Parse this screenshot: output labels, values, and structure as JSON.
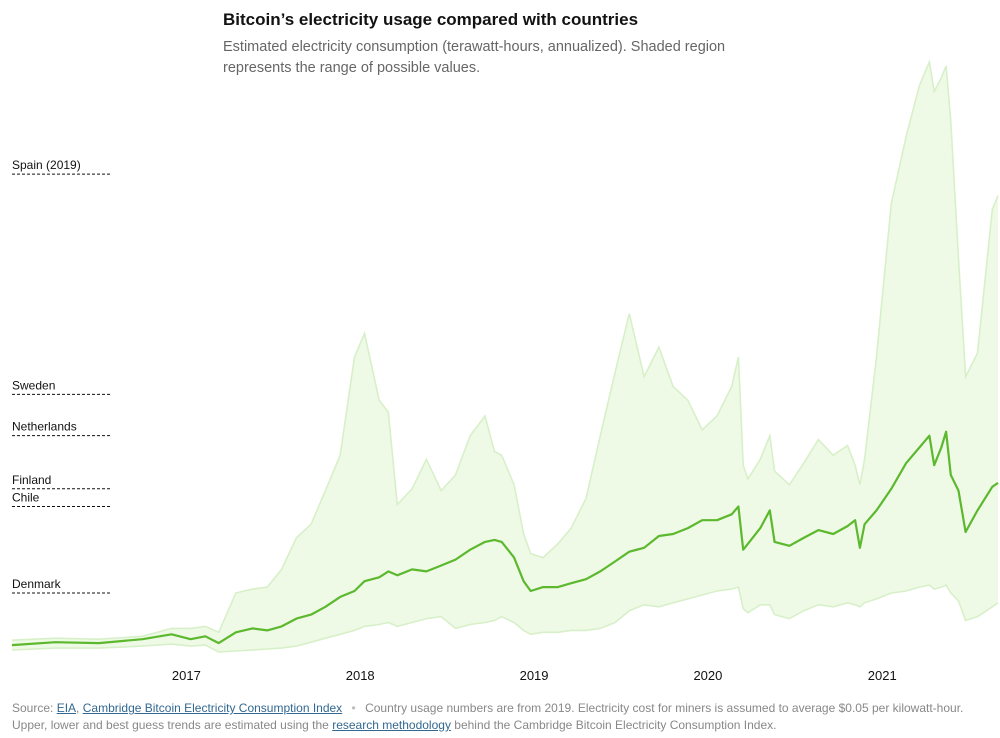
{
  "title": "Bitcoin’s electricity usage compared with countries",
  "subtitle": "Estimated electricity consumption (terawatt-hours, annualized). Shaded region represents the range of possible values.",
  "colors": {
    "line": "#5cb82d",
    "band_fill": "#eefae6",
    "band_edge": "#d8f0c9",
    "reference_line": "#121212",
    "link": "#326891"
  },
  "footer": {
    "source_prefix": "Source:",
    "link_eia": "EIA",
    "comma": ",",
    "link_cambridge": "Cambridge Bitcoin Electricity Consumption Index",
    "separator": "•",
    "note_part1": "Country usage numbers are from 2019. Electricity cost for miners is assumed to average $0.05 per kilowatt-hour. Upper, lower and best guess trends are estimated using the",
    "link_research": "research methodology",
    "note_part2": "behind the Cambridge Bitcoin Electricity Consumption Index."
  },
  "chart_data": {
    "type": "area",
    "ylim": [
      0,
      300
    ],
    "xlim": [
      "2016-01-01",
      "2021-09-01"
    ],
    "x_ticks": [
      {
        "label": "2017",
        "date": "2017-01-01"
      },
      {
        "label": "2018",
        "date": "2018-01-01"
      },
      {
        "label": "2019",
        "date": "2019-01-01"
      },
      {
        "label": "2020",
        "date": "2020-01-01"
      },
      {
        "label": "2021",
        "date": "2021-01-01"
      }
    ],
    "references": [
      {
        "label": "Spain (2019)",
        "value": 243
      },
      {
        "label": "Sweden",
        "value": 131
      },
      {
        "label": "Netherlands",
        "value": 110
      },
      {
        "label": "Finland",
        "value": 83
      },
      {
        "label": "Chile",
        "value": 74
      },
      {
        "label": "Denmark",
        "value": 30
      }
    ],
    "series": [
      {
        "role": "best_guess",
        "points": [
          [
            "2016-01-01",
            3.5
          ],
          [
            "2016-04-01",
            5
          ],
          [
            "2016-07-01",
            4.5
          ],
          [
            "2016-10-01",
            6.5
          ],
          [
            "2016-12-01",
            9
          ],
          [
            "2017-01-10",
            6.5
          ],
          [
            "2017-02-10",
            8
          ],
          [
            "2017-03-10",
            4.5
          ],
          [
            "2017-04-15",
            10
          ],
          [
            "2017-05-20",
            12
          ],
          [
            "2017-06-20",
            11
          ],
          [
            "2017-07-20",
            13
          ],
          [
            "2017-08-20",
            17
          ],
          [
            "2017-09-20",
            19
          ],
          [
            "2017-10-20",
            23
          ],
          [
            "2017-11-20",
            28
          ],
          [
            "2017-12-20",
            31
          ],
          [
            "2018-01-10",
            36
          ],
          [
            "2018-02-10",
            38
          ],
          [
            "2018-03-01",
            41
          ],
          [
            "2018-03-20",
            39
          ],
          [
            "2018-04-20",
            42
          ],
          [
            "2018-05-20",
            41
          ],
          [
            "2018-06-20",
            44
          ],
          [
            "2018-07-20",
            47
          ],
          [
            "2018-08-20",
            52
          ],
          [
            "2018-09-20",
            56
          ],
          [
            "2018-10-10",
            57
          ],
          [
            "2018-10-25",
            56
          ],
          [
            "2018-11-20",
            48
          ],
          [
            "2018-12-10",
            36
          ],
          [
            "2018-12-25",
            31
          ],
          [
            "2019-01-20",
            33
          ],
          [
            "2019-02-20",
            33
          ],
          [
            "2019-03-20",
            35
          ],
          [
            "2019-04-20",
            37
          ],
          [
            "2019-05-20",
            41
          ],
          [
            "2019-06-20",
            46
          ],
          [
            "2019-07-20",
            51
          ],
          [
            "2019-08-20",
            53
          ],
          [
            "2019-09-20",
            59
          ],
          [
            "2019-10-20",
            60
          ],
          [
            "2019-11-20",
            63
          ],
          [
            "2019-12-20",
            67
          ],
          [
            "2020-01-20",
            67
          ],
          [
            "2020-02-20",
            70
          ],
          [
            "2020-03-05",
            74
          ],
          [
            "2020-03-15",
            52
          ],
          [
            "2020-03-25",
            55
          ],
          [
            "2020-04-20",
            63
          ],
          [
            "2020-05-10",
            72
          ],
          [
            "2020-05-20",
            56
          ],
          [
            "2020-06-20",
            54
          ],
          [
            "2020-07-20",
            58
          ],
          [
            "2020-08-20",
            62
          ],
          [
            "2020-09-20",
            60
          ],
          [
            "2020-10-20",
            64
          ],
          [
            "2020-11-05",
            67
          ],
          [
            "2020-11-15",
            53
          ],
          [
            "2020-11-25",
            65
          ],
          [
            "2020-12-20",
            72
          ],
          [
            "2021-01-20",
            83
          ],
          [
            "2021-02-20",
            96
          ],
          [
            "2021-03-20",
            104
          ],
          [
            "2021-04-10",
            110
          ],
          [
            "2021-04-20",
            95
          ],
          [
            "2021-05-05",
            104
          ],
          [
            "2021-05-15",
            112
          ],
          [
            "2021-05-25",
            90
          ],
          [
            "2021-06-10",
            82
          ],
          [
            "2021-06-25",
            61
          ],
          [
            "2021-07-20",
            72
          ],
          [
            "2021-08-20",
            84
          ],
          [
            "2021-09-01",
            86
          ]
        ]
      },
      {
        "role": "upper",
        "points": [
          [
            "2016-01-01",
            6
          ],
          [
            "2016-04-01",
            7
          ],
          [
            "2016-07-01",
            6.5
          ],
          [
            "2016-10-01",
            8
          ],
          [
            "2016-12-01",
            12
          ],
          [
            "2017-01-10",
            12
          ],
          [
            "2017-02-10",
            13
          ],
          [
            "2017-03-10",
            10
          ],
          [
            "2017-04-15",
            30
          ],
          [
            "2017-05-20",
            32
          ],
          [
            "2017-06-20",
            33
          ],
          [
            "2017-07-20",
            42
          ],
          [
            "2017-08-20",
            58
          ],
          [
            "2017-09-20",
            65
          ],
          [
            "2017-10-20",
            82
          ],
          [
            "2017-11-20",
            100
          ],
          [
            "2017-12-20",
            150
          ],
          [
            "2018-01-10",
            162
          ],
          [
            "2018-02-10",
            128
          ],
          [
            "2018-03-01",
            122
          ],
          [
            "2018-03-20",
            75
          ],
          [
            "2018-04-20",
            83
          ],
          [
            "2018-05-20",
            98
          ],
          [
            "2018-06-20",
            82
          ],
          [
            "2018-07-20",
            90
          ],
          [
            "2018-08-20",
            110
          ],
          [
            "2018-09-20",
            120
          ],
          [
            "2018-10-10",
            102
          ],
          [
            "2018-10-25",
            100
          ],
          [
            "2018-11-20",
            85
          ],
          [
            "2018-12-10",
            60
          ],
          [
            "2018-12-25",
            50
          ],
          [
            "2019-01-20",
            48
          ],
          [
            "2019-02-20",
            55
          ],
          [
            "2019-03-20",
            63
          ],
          [
            "2019-04-20",
            78
          ],
          [
            "2019-05-20",
            110
          ],
          [
            "2019-06-20",
            142
          ],
          [
            "2019-07-20",
            172
          ],
          [
            "2019-08-20",
            140
          ],
          [
            "2019-09-20",
            155
          ],
          [
            "2019-10-20",
            135
          ],
          [
            "2019-11-20",
            128
          ],
          [
            "2019-12-20",
            113
          ],
          [
            "2020-01-20",
            120
          ],
          [
            "2020-02-20",
            135
          ],
          [
            "2020-03-05",
            150
          ],
          [
            "2020-03-15",
            95
          ],
          [
            "2020-03-25",
            88
          ],
          [
            "2020-04-20",
            98
          ],
          [
            "2020-05-10",
            110
          ],
          [
            "2020-05-20",
            92
          ],
          [
            "2020-06-20",
            85
          ],
          [
            "2020-07-20",
            96
          ],
          [
            "2020-08-20",
            108
          ],
          [
            "2020-09-20",
            100
          ],
          [
            "2020-10-20",
            105
          ],
          [
            "2020-11-05",
            95
          ],
          [
            "2020-11-15",
            85
          ],
          [
            "2020-11-25",
            98
          ],
          [
            "2020-12-20",
            150
          ],
          [
            "2021-01-20",
            228
          ],
          [
            "2021-02-20",
            262
          ],
          [
            "2021-03-20",
            288
          ],
          [
            "2021-04-10",
            300
          ],
          [
            "2021-04-20",
            285
          ],
          [
            "2021-05-05",
            292
          ],
          [
            "2021-05-15",
            298
          ],
          [
            "2021-05-25",
            270
          ],
          [
            "2021-06-10",
            200
          ],
          [
            "2021-06-25",
            140
          ],
          [
            "2021-07-20",
            152
          ],
          [
            "2021-08-20",
            225
          ],
          [
            "2021-09-01",
            232
          ]
        ]
      },
      {
        "role": "lower",
        "points": [
          [
            "2016-01-01",
            1
          ],
          [
            "2016-04-01",
            2
          ],
          [
            "2016-07-01",
            2
          ],
          [
            "2016-10-01",
            3
          ],
          [
            "2016-12-01",
            4
          ],
          [
            "2017-01-10",
            3
          ],
          [
            "2017-02-10",
            3.5
          ],
          [
            "2017-03-10",
            0
          ],
          [
            "2017-04-15",
            0.5
          ],
          [
            "2017-05-20",
            1
          ],
          [
            "2017-06-20",
            1.5
          ],
          [
            "2017-07-20",
            2
          ],
          [
            "2017-08-20",
            3
          ],
          [
            "2017-09-20",
            5
          ],
          [
            "2017-10-20",
            7
          ],
          [
            "2017-11-20",
            9
          ],
          [
            "2017-12-20",
            11
          ],
          [
            "2018-01-10",
            13
          ],
          [
            "2018-02-10",
            14
          ],
          [
            "2018-03-01",
            15
          ],
          [
            "2018-03-20",
            13
          ],
          [
            "2018-04-20",
            15
          ],
          [
            "2018-05-20",
            17
          ],
          [
            "2018-06-20",
            18
          ],
          [
            "2018-07-20",
            12
          ],
          [
            "2018-08-20",
            14
          ],
          [
            "2018-09-20",
            15
          ],
          [
            "2018-10-10",
            16
          ],
          [
            "2018-10-25",
            18
          ],
          [
            "2018-11-20",
            15
          ],
          [
            "2018-12-10",
            11
          ],
          [
            "2018-12-25",
            9
          ],
          [
            "2019-01-20",
            10
          ],
          [
            "2019-02-20",
            10
          ],
          [
            "2019-03-20",
            11
          ],
          [
            "2019-04-20",
            11
          ],
          [
            "2019-05-20",
            12
          ],
          [
            "2019-06-20",
            15
          ],
          [
            "2019-07-20",
            21
          ],
          [
            "2019-08-20",
            24
          ],
          [
            "2019-09-20",
            23
          ],
          [
            "2019-10-20",
            25
          ],
          [
            "2019-11-20",
            27
          ],
          [
            "2019-12-20",
            29
          ],
          [
            "2020-01-20",
            31
          ],
          [
            "2020-02-20",
            32
          ],
          [
            "2020-03-05",
            33
          ],
          [
            "2020-03-15",
            22
          ],
          [
            "2020-03-25",
            20
          ],
          [
            "2020-04-20",
            24
          ],
          [
            "2020-05-10",
            24
          ],
          [
            "2020-05-20",
            19
          ],
          [
            "2020-06-20",
            17
          ],
          [
            "2020-07-20",
            21
          ],
          [
            "2020-08-20",
            24
          ],
          [
            "2020-09-20",
            23
          ],
          [
            "2020-10-20",
            25
          ],
          [
            "2020-11-05",
            24
          ],
          [
            "2020-11-15",
            23
          ],
          [
            "2020-11-25",
            25
          ],
          [
            "2020-12-20",
            27
          ],
          [
            "2021-01-20",
            30
          ],
          [
            "2021-02-20",
            31
          ],
          [
            "2021-03-20",
            33
          ],
          [
            "2021-04-10",
            34
          ],
          [
            "2021-04-20",
            32
          ],
          [
            "2021-05-05",
            33
          ],
          [
            "2021-05-15",
            34
          ],
          [
            "2021-05-25",
            30
          ],
          [
            "2021-06-10",
            26
          ],
          [
            "2021-06-25",
            16
          ],
          [
            "2021-07-20",
            18
          ],
          [
            "2021-08-20",
            23
          ],
          [
            "2021-09-01",
            25
          ]
        ]
      }
    ]
  }
}
